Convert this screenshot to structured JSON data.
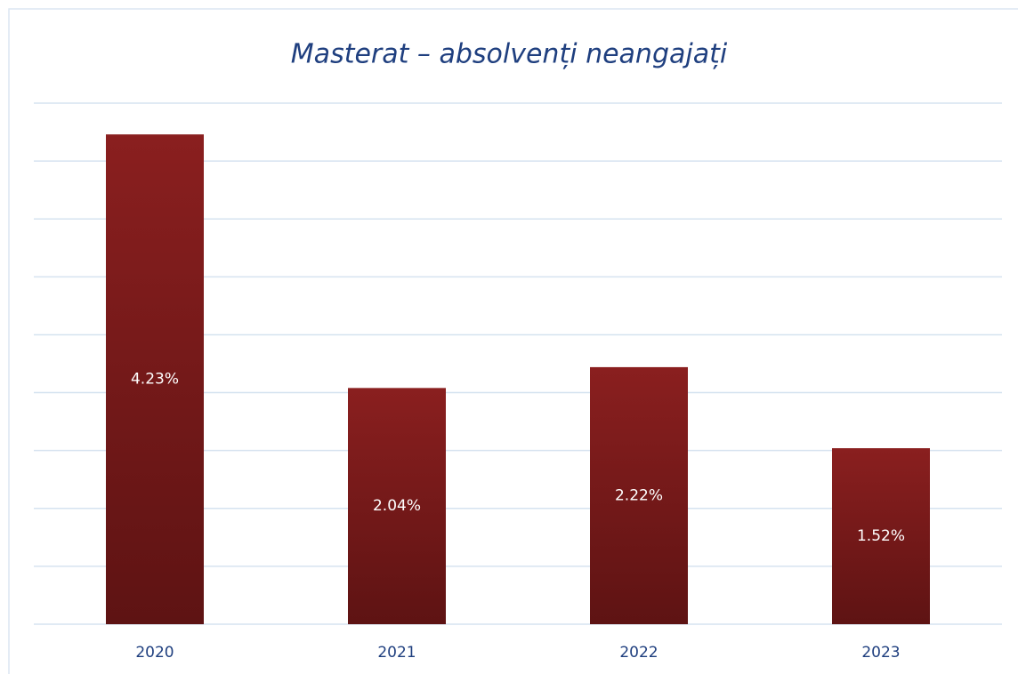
{
  "chart_data": {
    "type": "bar",
    "title": "Masterat – absolvenți neangajați",
    "categories": [
      "2020",
      "2021",
      "2022",
      "2023"
    ],
    "values": [
      4.23,
      2.04,
      2.22,
      1.52
    ],
    "value_labels": [
      "4.23%",
      "2.04%",
      "2.22%",
      "1.52%"
    ],
    "color": "#7a1a1a",
    "ylim": [
      0,
      4.5
    ],
    "yticks": [
      0,
      0.5,
      1,
      1.5,
      2,
      2.5,
      3,
      3.5,
      4,
      4.5
    ],
    "grid": true
  }
}
